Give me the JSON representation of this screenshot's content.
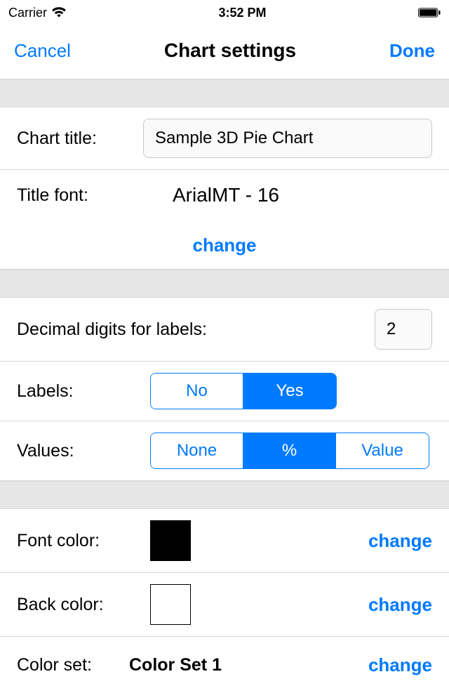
{
  "statusBar": {
    "carrier": "Carrier",
    "time": "3:52 PM"
  },
  "nav": {
    "cancel": "Cancel",
    "title": "Chart settings",
    "done": "Done"
  },
  "fields": {
    "chartTitle": {
      "label": "Chart title:",
      "value": "Sample 3D Pie Chart"
    },
    "titleFont": {
      "label": "Title font:",
      "value": "ArialMT - 16",
      "changeLabel": "change"
    },
    "decimal": {
      "label": "Decimal digits for labels:",
      "value": "2"
    },
    "labels": {
      "label": "Labels:",
      "options": [
        "No",
        "Yes"
      ],
      "selectedIndex": 1
    },
    "values": {
      "label": "Values:",
      "options": [
        "None",
        "%",
        "Value"
      ],
      "selectedIndex": 1
    },
    "fontColor": {
      "label": "Font color:",
      "swatch": "#000000",
      "changeLabel": "change"
    },
    "backColor": {
      "label": "Back color:",
      "swatch": "#ffffff",
      "changeLabel": "change"
    },
    "colorSet": {
      "label": "Color set:",
      "value": "Color Set 1",
      "changeLabel": "change"
    }
  },
  "colors": {
    "accent": "#007aff",
    "separator": "#d8d8d8",
    "sectionBg": "#e7e6e6",
    "swatchSize": 58
  }
}
